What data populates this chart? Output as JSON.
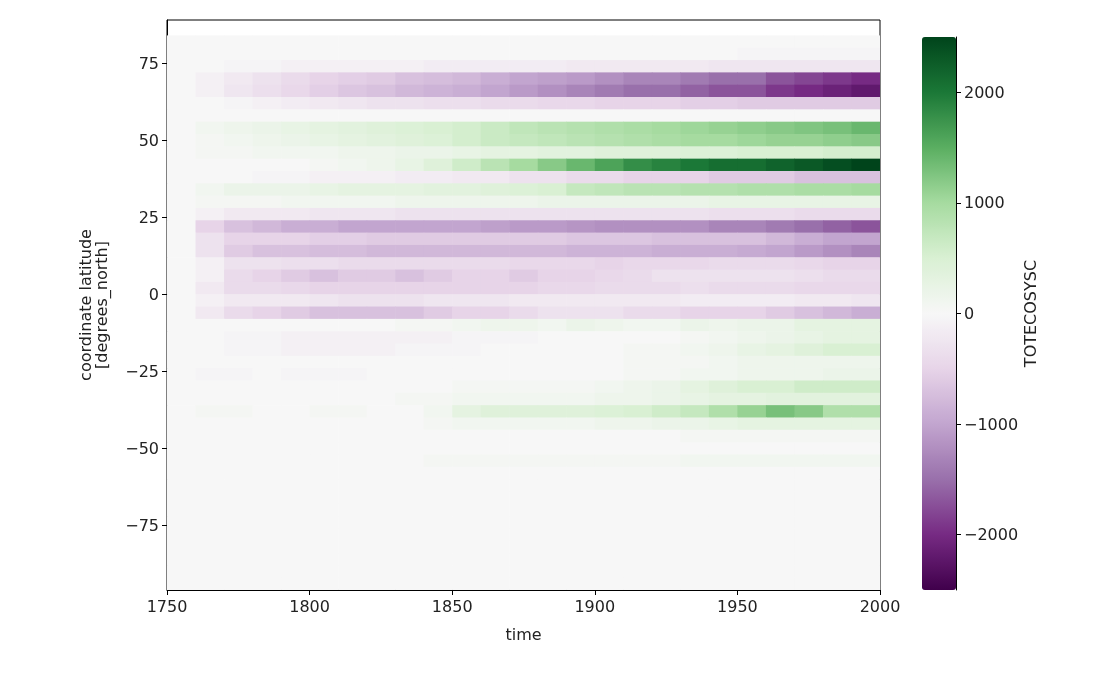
{
  "chart_data": {
    "type": "heatmap",
    "xlabel": "time",
    "ylabel": "coordinate latitude\n[degrees_north]",
    "clabel": "TOTECOSYSC",
    "x": [
      1755,
      1765,
      1775,
      1785,
      1795,
      1805,
      1815,
      1825,
      1835,
      1845,
      1855,
      1865,
      1875,
      1885,
      1895,
      1905,
      1915,
      1925,
      1935,
      1945,
      1955,
      1965,
      1975,
      1985,
      1995
    ],
    "y": [
      82,
      78,
      74,
      70,
      66,
      62,
      58,
      54,
      50,
      46,
      42,
      38,
      34,
      30,
      26,
      22,
      18,
      14,
      10,
      6,
      2,
      -2,
      -6,
      -10,
      -14,
      -18,
      -22,
      -26,
      -30,
      -34,
      -38,
      -42,
      -46,
      -50,
      -54,
      -58,
      -62,
      -66,
      -70,
      -74,
      -78,
      -82,
      -86,
      -90,
      -94
    ],
    "cells": [
      [
        0,
        0,
        0,
        0,
        0,
        0,
        0,
        0,
        0,
        0,
        0,
        0,
        0,
        0,
        0,
        0,
        0,
        0,
        0,
        0,
        0,
        0,
        0,
        0,
        0
      ],
      [
        0,
        0,
        0,
        0,
        0,
        0,
        0,
        0,
        0,
        0,
        0,
        0,
        0,
        0,
        0,
        0,
        0,
        0,
        0,
        0,
        -50,
        -50,
        -50,
        -50,
        -50
      ],
      [
        0,
        0,
        -50,
        -50,
        -100,
        -100,
        -100,
        -100,
        -100,
        -150,
        -150,
        -150,
        -150,
        -150,
        -200,
        -200,
        -200,
        -200,
        -200,
        -250,
        -250,
        -250,
        -250,
        -250,
        -250
      ],
      [
        0,
        -100,
        -200,
        -300,
        -400,
        -500,
        -550,
        -600,
        -700,
        -750,
        -800,
        -900,
        -1000,
        -1050,
        -1100,
        -1200,
        -1300,
        -1300,
        -1400,
        -1500,
        -1500,
        -1700,
        -1800,
        -1900,
        -2000
      ],
      [
        0,
        -100,
        -250,
        -350,
        -450,
        -550,
        -650,
        -700,
        -800,
        -850,
        -900,
        -1000,
        -1100,
        -1200,
        -1300,
        -1400,
        -1500,
        -1500,
        -1600,
        -1700,
        -1700,
        -1900,
        -2000,
        -2100,
        -2200
      ],
      [
        0,
        0,
        -50,
        -100,
        -150,
        -200,
        -250,
        -300,
        -300,
        -350,
        -350,
        -400,
        -400,
        -450,
        -450,
        -500,
        -500,
        -500,
        -550,
        -550,
        -600,
        -600,
        -600,
        -600,
        -600
      ],
      [
        0,
        0,
        0,
        0,
        0,
        0,
        0,
        0,
        0,
        0,
        0,
        0,
        0,
        0,
        0,
        0,
        0,
        0,
        0,
        0,
        0,
        0,
        0,
        0,
        0
      ],
      [
        0,
        100,
        150,
        200,
        250,
        300,
        350,
        400,
        450,
        500,
        550,
        650,
        750,
        800,
        850,
        900,
        950,
        1000,
        1050,
        1100,
        1150,
        1200,
        1250,
        1300,
        1400
      ],
      [
        0,
        50,
        100,
        150,
        200,
        250,
        300,
        350,
        400,
        450,
        550,
        650,
        700,
        750,
        800,
        850,
        900,
        950,
        1000,
        1000,
        1050,
        1100,
        1100,
        1150,
        1200
      ],
      [
        0,
        50,
        50,
        100,
        100,
        100,
        150,
        150,
        200,
        200,
        250,
        300,
        300,
        350,
        350,
        400,
        400,
        400,
        450,
        450,
        500,
        500,
        500,
        550,
        550
      ],
      [
        0,
        0,
        0,
        0,
        0,
        50,
        100,
        150,
        250,
        400,
        600,
        800,
        1000,
        1200,
        1400,
        1600,
        1800,
        1900,
        2000,
        2100,
        2100,
        2200,
        2300,
        2400,
        2500
      ],
      [
        0,
        0,
        0,
        -50,
        -50,
        -100,
        -100,
        -100,
        -150,
        -150,
        -200,
        -200,
        -300,
        -300,
        -400,
        -400,
        -500,
        -500,
        -500,
        -600,
        -600,
        -600,
        -700,
        -700,
        -700
      ],
      [
        0,
        100,
        200,
        200,
        200,
        250,
        300,
        300,
        300,
        350,
        350,
        400,
        450,
        500,
        700,
        750,
        800,
        800,
        850,
        850,
        900,
        900,
        950,
        950,
        1000
      ],
      [
        0,
        50,
        50,
        50,
        100,
        100,
        100,
        100,
        150,
        150,
        150,
        150,
        150,
        200,
        200,
        200,
        200,
        200,
        200,
        250,
        250,
        250,
        250,
        250,
        250
      ],
      [
        0,
        -100,
        -200,
        -200,
        -200,
        -250,
        -250,
        -250,
        -300,
        -300,
        -300,
        -300,
        -300,
        -300,
        -300,
        -300,
        -300,
        -300,
        -300,
        -350,
        -350,
        -350,
        -400,
        -400,
        -400
      ],
      [
        0,
        -500,
        -700,
        -800,
        -900,
        -900,
        -1000,
        -1000,
        -1000,
        -1000,
        -1000,
        -1050,
        -1100,
        -1100,
        -1150,
        -1200,
        -1200,
        -1200,
        -1200,
        -1300,
        -1300,
        -1400,
        -1500,
        -1600,
        -1700
      ],
      [
        0,
        -300,
        -500,
        -500,
        -500,
        -550,
        -550,
        -600,
        -600,
        -600,
        -600,
        -600,
        -600,
        -600,
        -650,
        -650,
        -650,
        -700,
        -700,
        -700,
        -700,
        -800,
        -900,
        -1000,
        -1000
      ],
      [
        0,
        -300,
        -600,
        -700,
        -700,
        -750,
        -750,
        -800,
        -800,
        -800,
        -800,
        -800,
        -800,
        -800,
        -850,
        -850,
        -850,
        -900,
        -900,
        -900,
        -950,
        -1000,
        -1100,
        -1200,
        -1300
      ],
      [
        0,
        -100,
        -300,
        -300,
        -350,
        -350,
        -400,
        -400,
        -400,
        -400,
        -400,
        -400,
        -450,
        -450,
        -450,
        -500,
        -450,
        -450,
        -450,
        -400,
        -400,
        -400,
        -450,
        -500,
        -500
      ],
      [
        0,
        -100,
        -400,
        -500,
        -600,
        -700,
        -600,
        -600,
        -700,
        -600,
        -500,
        -500,
        -600,
        -500,
        -500,
        -450,
        -400,
        -300,
        -300,
        -300,
        -300,
        -300,
        -350,
        -400,
        -400
      ],
      [
        0,
        -200,
        -400,
        -400,
        -450,
        -500,
        -500,
        -500,
        -500,
        -500,
        -500,
        -500,
        -500,
        -450,
        -450,
        -400,
        -400,
        -400,
        -350,
        -400,
        -400,
        -400,
        -450,
        -450,
        -450
      ],
      [
        0,
        -100,
        -200,
        -200,
        -200,
        -250,
        -300,
        -300,
        -300,
        -250,
        -250,
        -250,
        -200,
        -200,
        -200,
        -200,
        -200,
        -200,
        -150,
        -150,
        -150,
        -150,
        -200,
        -200,
        -250
      ],
      [
        0,
        -200,
        -400,
        -500,
        -600,
        -700,
        -700,
        -700,
        -700,
        -600,
        -500,
        -500,
        -400,
        -300,
        -300,
        -300,
        -400,
        -400,
        -500,
        -500,
        -500,
        -600,
        -700,
        -800,
        -900
      ],
      [
        0,
        0,
        0,
        0,
        0,
        0,
        0,
        0,
        50,
        50,
        100,
        150,
        150,
        100,
        200,
        150,
        100,
        100,
        200,
        150,
        200,
        200,
        300,
        300,
        300
      ],
      [
        0,
        0,
        -50,
        -50,
        -100,
        -100,
        -100,
        -100,
        -100,
        -100,
        -50,
        -50,
        -50,
        0,
        0,
        0,
        0,
        0,
        50,
        100,
        150,
        200,
        250,
        300,
        300
      ],
      [
        0,
        0,
        -50,
        -50,
        -100,
        -100,
        -100,
        -100,
        -50,
        -50,
        -50,
        0,
        0,
        0,
        0,
        0,
        50,
        50,
        100,
        150,
        250,
        300,
        400,
        500,
        500
      ],
      [
        0,
        0,
        0,
        0,
        0,
        0,
        0,
        0,
        0,
        0,
        0,
        0,
        0,
        0,
        0,
        0,
        50,
        50,
        50,
        100,
        150,
        150,
        150,
        150,
        150
      ],
      [
        0,
        -50,
        -50,
        0,
        -50,
        -50,
        -50,
        0,
        0,
        0,
        0,
        0,
        0,
        0,
        0,
        0,
        50,
        50,
        100,
        100,
        150,
        150,
        150,
        200,
        200
      ],
      [
        0,
        0,
        0,
        0,
        0,
        0,
        0,
        0,
        0,
        0,
        50,
        50,
        50,
        50,
        50,
        100,
        150,
        200,
        300,
        400,
        500,
        500,
        600,
        600,
        600
      ],
      [
        0,
        0,
        0,
        0,
        0,
        0,
        0,
        0,
        50,
        50,
        100,
        100,
        100,
        100,
        100,
        150,
        150,
        200,
        250,
        300,
        300,
        350,
        350,
        350,
        350
      ],
      [
        0,
        50,
        50,
        0,
        0,
        50,
        50,
        0,
        0,
        100,
        300,
        400,
        400,
        400,
        400,
        450,
        500,
        600,
        700,
        900,
        1100,
        1300,
        1200,
        900,
        900
      ],
      [
        0,
        0,
        0,
        0,
        0,
        0,
        0,
        0,
        0,
        50,
        100,
        100,
        100,
        100,
        100,
        150,
        150,
        200,
        200,
        250,
        300,
        300,
        300,
        300,
        300
      ],
      [
        0,
        0,
        0,
        0,
        0,
        0,
        0,
        0,
        0,
        0,
        0,
        0,
        0,
        0,
        0,
        0,
        0,
        0,
        50,
        50,
        50,
        50,
        50,
        50,
        50
      ],
      [
        0,
        0,
        0,
        0,
        0,
        0,
        0,
        0,
        0,
        0,
        0,
        0,
        0,
        0,
        0,
        0,
        0,
        0,
        0,
        0,
        0,
        0,
        0,
        0,
        0
      ],
      [
        0,
        0,
        0,
        0,
        0,
        0,
        0,
        0,
        0,
        50,
        50,
        50,
        50,
        50,
        50,
        50,
        50,
        50,
        100,
        100,
        100,
        100,
        100,
        100,
        100
      ],
      [
        0,
        0,
        0,
        0,
        0,
        0,
        0,
        0,
        0,
        0,
        0,
        0,
        0,
        0,
        0,
        0,
        0,
        0,
        0,
        0,
        0,
        0,
        0,
        0,
        0
      ],
      [
        0,
        0,
        0,
        0,
        0,
        0,
        0,
        0,
        0,
        0,
        0,
        0,
        0,
        0,
        0,
        0,
        0,
        0,
        0,
        0,
        0,
        0,
        0,
        0,
        0
      ],
      [
        0,
        0,
        0,
        0,
        0,
        0,
        0,
        0,
        0,
        0,
        0,
        0,
        0,
        0,
        0,
        0,
        0,
        0,
        0,
        0,
        0,
        0,
        0,
        0,
        0
      ],
      [
        0,
        0,
        0,
        0,
        0,
        0,
        0,
        0,
        0,
        0,
        0,
        0,
        0,
        0,
        0,
        0,
        0,
        0,
        0,
        0,
        0,
        0,
        0,
        0,
        0
      ],
      [
        0,
        0,
        0,
        0,
        0,
        0,
        0,
        0,
        0,
        0,
        0,
        0,
        0,
        0,
        0,
        0,
        0,
        0,
        0,
        0,
        0,
        0,
        0,
        0,
        0
      ],
      [
        0,
        0,
        0,
        0,
        0,
        0,
        0,
        0,
        0,
        0,
        0,
        0,
        0,
        0,
        0,
        0,
        0,
        0,
        0,
        0,
        0,
        0,
        0,
        0,
        0
      ],
      [
        0,
        0,
        0,
        0,
        0,
        0,
        0,
        0,
        0,
        0,
        0,
        0,
        0,
        0,
        0,
        0,
        0,
        0,
        0,
        0,
        0,
        0,
        0,
        0,
        0
      ],
      [
        0,
        0,
        0,
        0,
        0,
        0,
        0,
        0,
        0,
        0,
        0,
        0,
        0,
        0,
        0,
        0,
        0,
        0,
        0,
        0,
        0,
        0,
        0,
        0,
        0
      ],
      [
        0,
        0,
        0,
        0,
        0,
        0,
        0,
        0,
        0,
        0,
        0,
        0,
        0,
        0,
        0,
        0,
        0,
        0,
        0,
        0,
        0,
        0,
        0,
        0,
        0
      ],
      [
        0,
        0,
        0,
        0,
        0,
        0,
        0,
        0,
        0,
        0,
        0,
        0,
        0,
        0,
        0,
        0,
        0,
        0,
        0,
        0,
        0,
        0,
        0,
        0,
        0
      ]
    ],
    "xlim": [
      1750,
      2000
    ],
    "xticks": [
      1750,
      1800,
      1850,
      1900,
      1950,
      2000
    ],
    "ylim": [
      -96,
      89
    ],
    "yticks": [
      -75,
      -50,
      -25,
      0,
      25,
      50,
      75
    ],
    "clim": [
      -2500,
      2500
    ],
    "cticks": [
      -2000,
      -1000,
      0,
      1000,
      2000
    ]
  }
}
